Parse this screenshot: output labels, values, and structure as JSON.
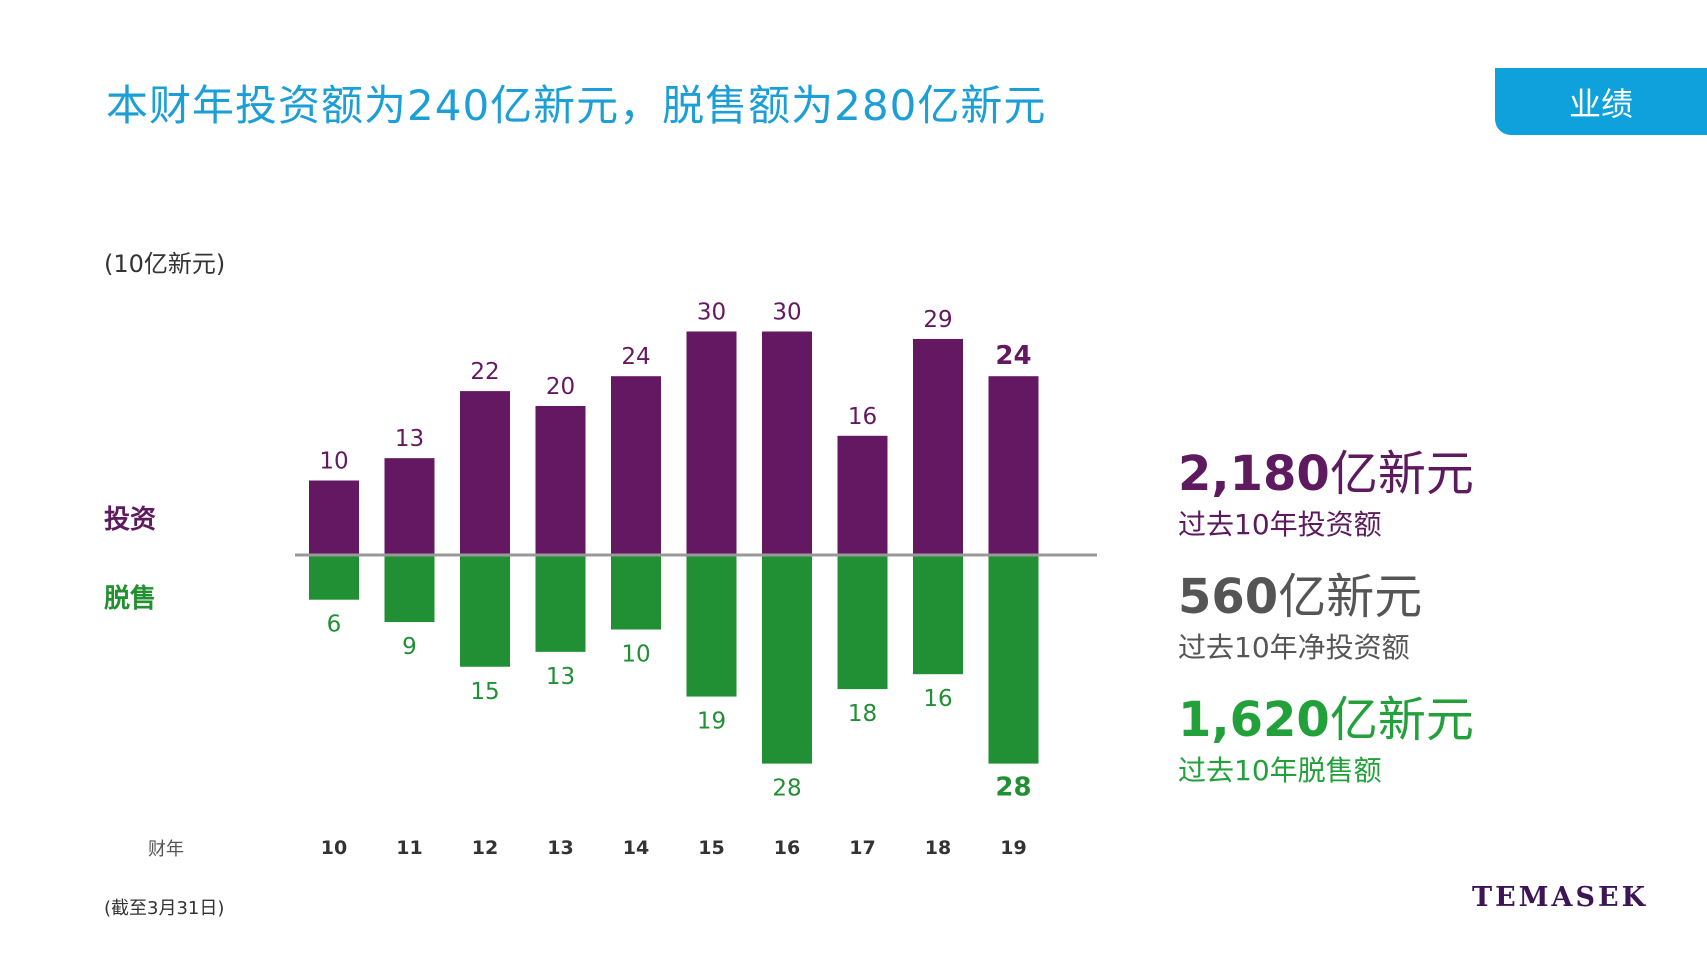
{
  "title": "本财年投资额为240亿新元，脱售额为280亿新元",
  "tab_label": "业绩",
  "unit_label": "(10亿新元)",
  "invest_label": "投资",
  "divest_label": "脱售",
  "fy_label": "财年",
  "note": "(截至3月31日)",
  "logo": "TEMASEK",
  "stats": [
    {
      "value": "2,180",
      "unit": "亿新元",
      "caption": "过去10年投资额",
      "color": "#5d1a5e"
    },
    {
      "value": "560",
      "unit": "亿新元",
      "caption": "过去10年净投资额",
      "color": "#555555"
    },
    {
      "value": "1,620",
      "unit": "亿新元",
      "caption": "过去10年脱售额",
      "color": "#22a13a"
    }
  ],
  "colors": {
    "investment": "#651862",
    "divestment": "#218f34",
    "axis": "#999999",
    "title": "#1b9fd6",
    "tab": "#0ea1dc"
  },
  "chart_data": {
    "type": "bar",
    "categories": [
      "10",
      "11",
      "12",
      "13",
      "14",
      "15",
      "16",
      "17",
      "18",
      "19"
    ],
    "series": [
      {
        "name": "投资",
        "values": [
          10,
          13,
          22,
          20,
          24,
          30,
          30,
          16,
          29,
          24
        ]
      },
      {
        "name": "脱售",
        "values": [
          6,
          9,
          15,
          13,
          10,
          19,
          28,
          18,
          16,
          28
        ]
      }
    ],
    "highlight_last": true
  }
}
